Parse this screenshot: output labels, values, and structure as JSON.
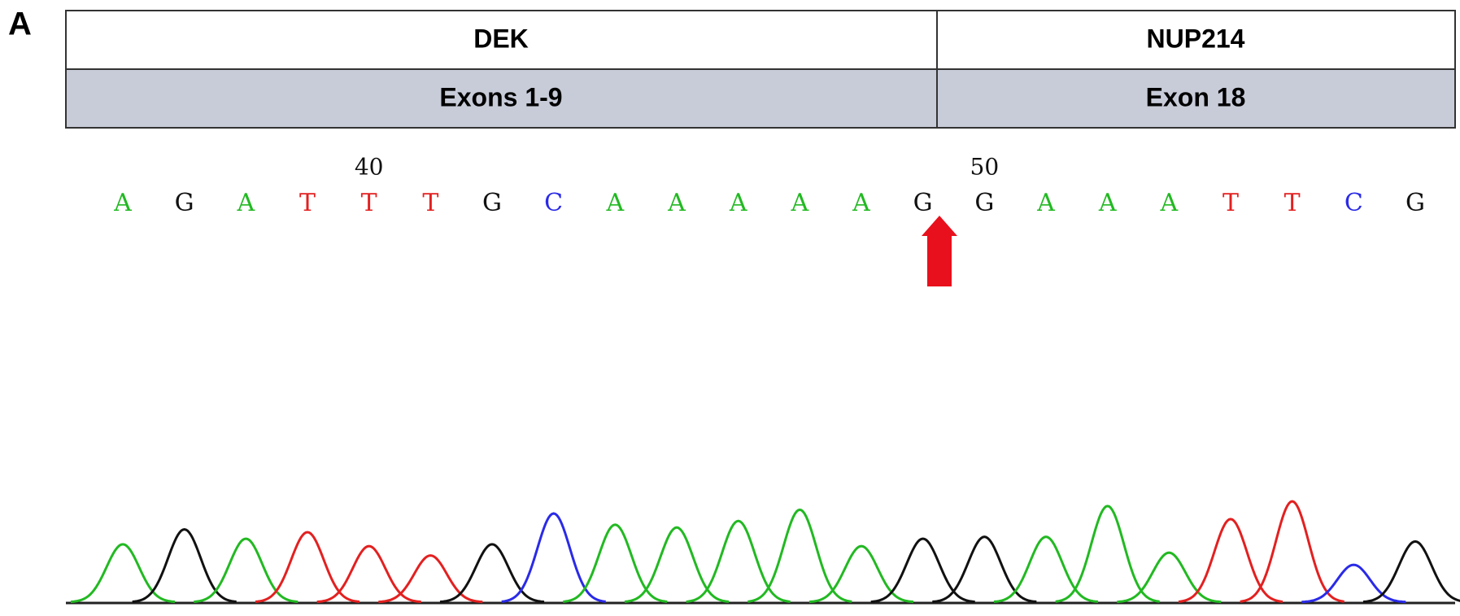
{
  "panel_label": "A",
  "header": {
    "genes": [
      "DEK",
      "NUP214"
    ],
    "exons": [
      "Exons 1-9",
      "Exon 18"
    ]
  },
  "sequence": {
    "bases": [
      "A",
      "G",
      "A",
      "T",
      "T",
      "T",
      "G",
      "C",
      "A",
      "A",
      "A",
      "A",
      "A",
      "G",
      "G",
      "A",
      "A",
      "A",
      "T",
      "T",
      "C",
      "G"
    ],
    "position_numbers": [
      null,
      null,
      null,
      null,
      40,
      null,
      null,
      null,
      null,
      null,
      null,
      null,
      null,
      null,
      50,
      null,
      null,
      null,
      null,
      null,
      null,
      null
    ],
    "colors": {
      "A": "#22b922",
      "G": "#111111",
      "T": "#e32020",
      "C": "#2a2ae8"
    },
    "trace_heights": [
      62,
      78,
      68,
      75,
      60,
      50,
      62,
      95,
      83,
      80,
      87,
      99,
      60,
      68,
      70,
      70,
      103,
      53,
      89,
      108,
      40,
      65
    ]
  }
}
